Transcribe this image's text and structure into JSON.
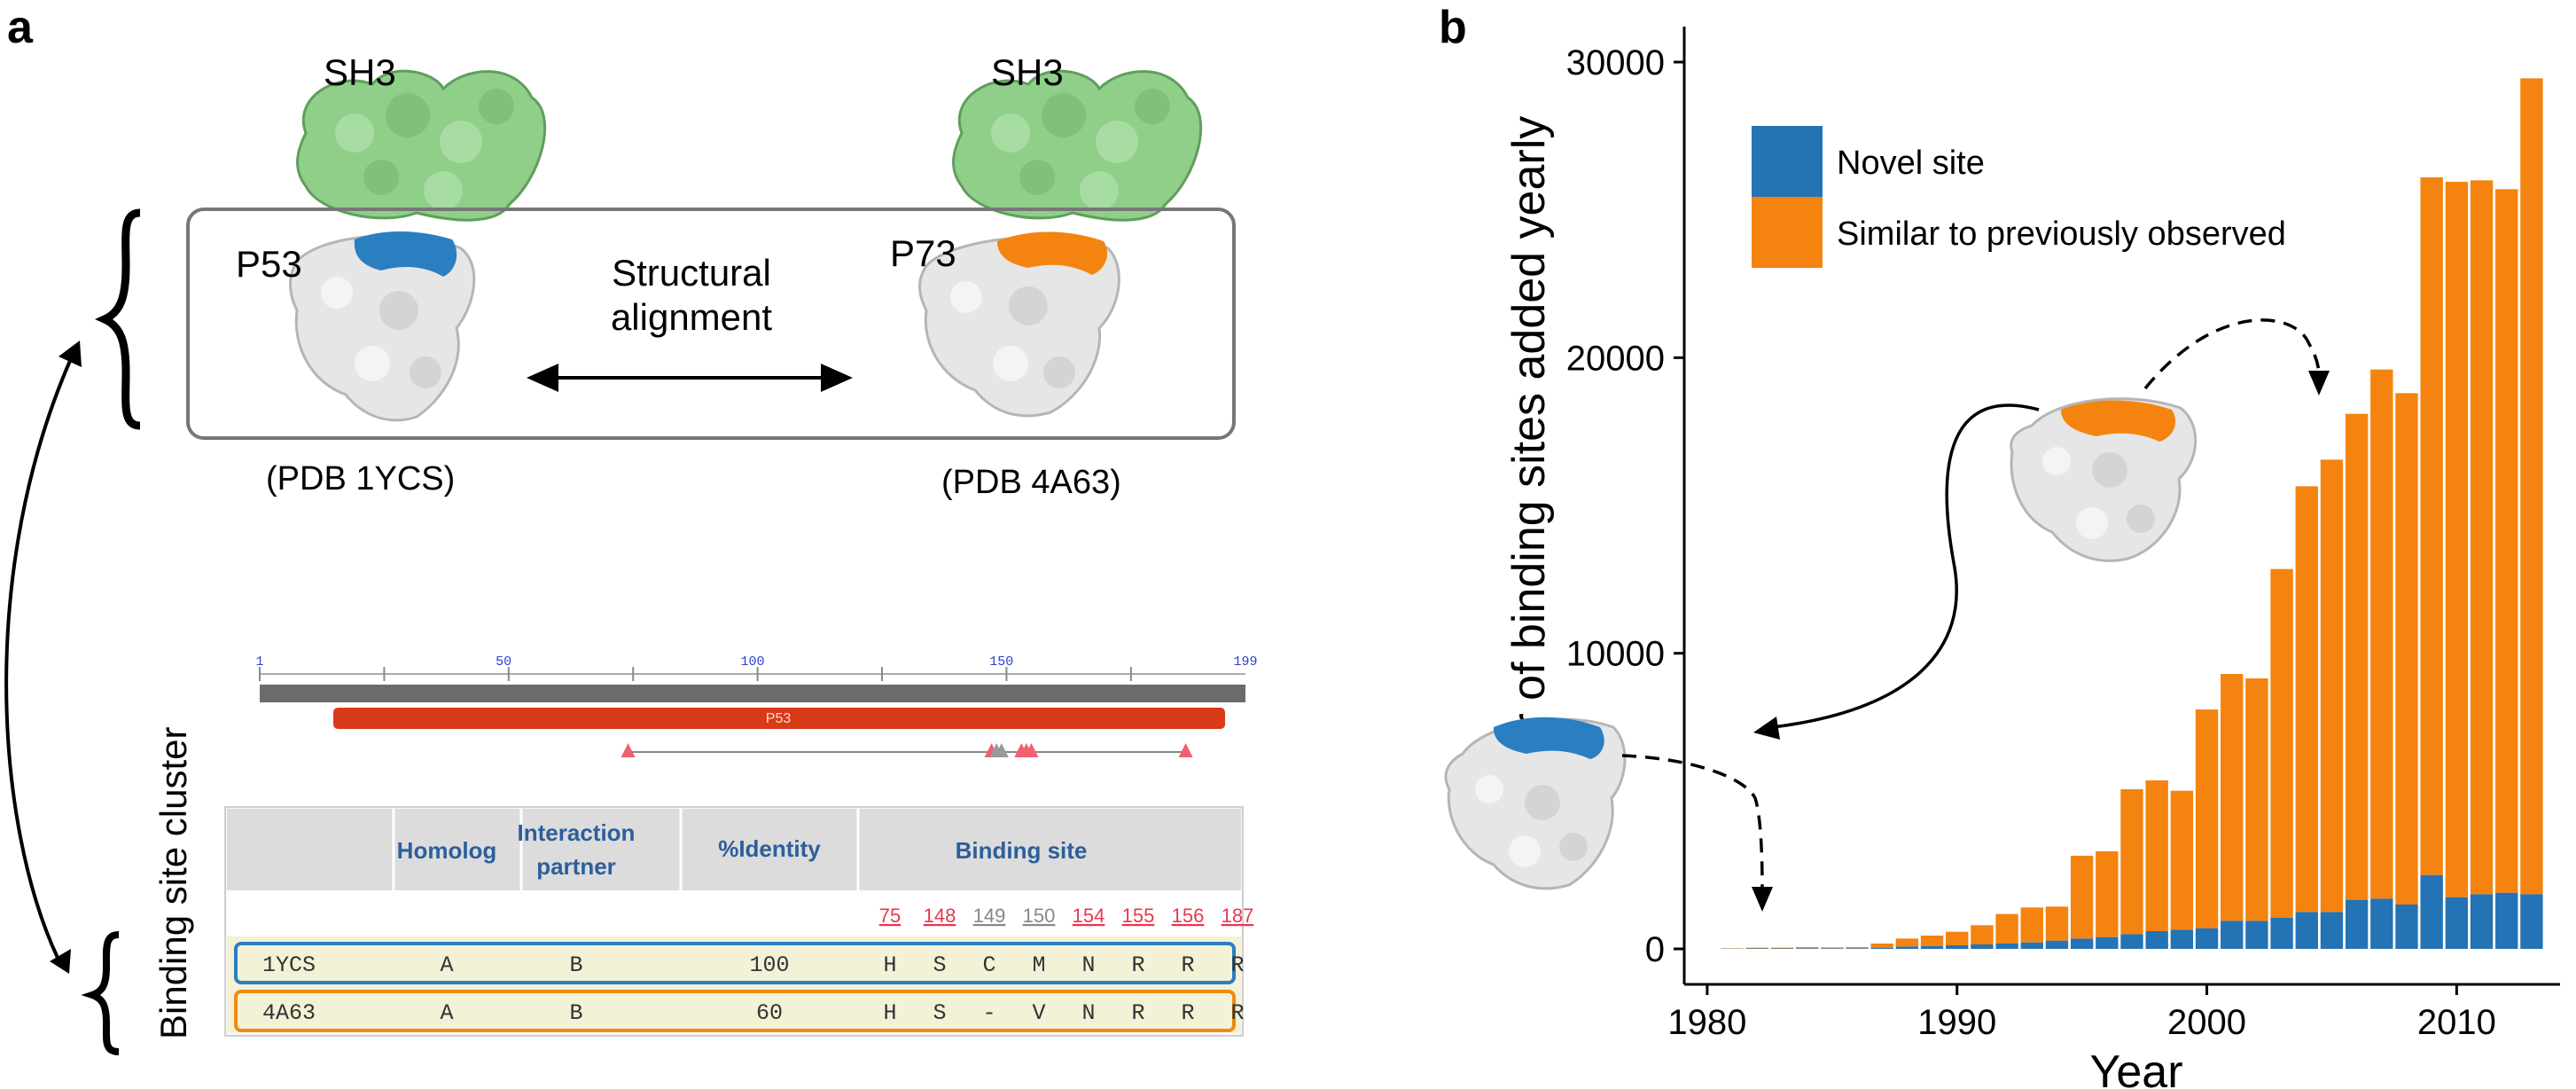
{
  "panel_a": {
    "letter": "a",
    "top_structure": {
      "left_partner": "SH3",
      "right_partner": "SH3",
      "left_protein": "P53",
      "right_protein": "P73",
      "center_label_line1": "Structural",
      "center_label_line2": "alignment",
      "left_pdb": "(PDB 1YCS)",
      "right_pdb": "(PDB 4A63)"
    },
    "cluster_label": "Binding site cluster",
    "sequence_bar": {
      "ticks": [
        "1",
        "50",
        "100",
        "150",
        "199"
      ],
      "domain_label": "P53"
    },
    "table": {
      "headers": {
        "homolog": "Homolog",
        "partner_line1": "Interaction",
        "partner_line2": "partner",
        "identity": "%Identity",
        "binding_site": "Binding site"
      },
      "positions": [
        {
          "num": "75",
          "color": "#e8384f"
        },
        {
          "num": "148",
          "color": "#e8384f"
        },
        {
          "num": "149",
          "color": "#888888"
        },
        {
          "num": "150",
          "color": "#888888"
        },
        {
          "num": "154",
          "color": "#e8384f"
        },
        {
          "num": "155",
          "color": "#e8384f"
        },
        {
          "num": "156",
          "color": "#e8384f"
        },
        {
          "num": "187",
          "color": "#e8384f"
        }
      ],
      "rows": [
        {
          "id": "1YCS",
          "homolog": "A",
          "partner": "B",
          "identity": "100",
          "residues": [
            "H",
            "S",
            "C",
            "M",
            "N",
            "R",
            "R",
            "R"
          ],
          "border": "#2a7fc0"
        },
        {
          "id": "4A63",
          "homolog": "A",
          "partner": "B",
          "identity": "60",
          "residues": [
            "H",
            "S",
            "-",
            "V",
            "N",
            "R",
            "R",
            "R"
          ],
          "border": "#f08a10"
        }
      ]
    }
  },
  "panel_b": {
    "letter": "b",
    "colors": {
      "novel": "#2373b5",
      "similar": "#f5830f"
    }
  },
  "chart_data": {
    "type": "bar",
    "stacked": true,
    "xlabel": "Year",
    "ylabel": "Number of binding sites added yearly",
    "x_ticks": [
      "1980",
      "1990",
      "2000",
      "2010"
    ],
    "y_ticks": [
      "0",
      "10000",
      "20000",
      "30000"
    ],
    "ylim": [
      0,
      30000
    ],
    "xlim": [
      1980,
      2014
    ],
    "legend_position": "top-left",
    "categories": [
      1981,
      1982,
      1983,
      1984,
      1985,
      1986,
      1987,
      1988,
      1989,
      1990,
      1991,
      1992,
      1993,
      1994,
      1995,
      1996,
      1997,
      1998,
      1999,
      2000,
      2001,
      2002,
      2003,
      2004,
      2005,
      2006,
      2007,
      2008,
      2009,
      2010,
      2011,
      2012,
      2013
    ],
    "series": [
      {
        "name": "Novel site",
        "color": "#2373b5",
        "values": [
          10,
          15,
          15,
          20,
          20,
          20,
          40,
          80,
          100,
          120,
          150,
          180,
          220,
          280,
          350,
          400,
          500,
          600,
          650,
          700,
          950,
          950,
          1050,
          1250,
          1250,
          1650,
          1700,
          1500,
          2500,
          1750,
          1850,
          1900,
          1850
        ]
      },
      {
        "name": "Similar to previously observed",
        "color": "#f5830f",
        "values": [
          10,
          25,
          25,
          40,
          30,
          40,
          140,
          270,
          350,
          460,
          650,
          1000,
          1180,
          1150,
          2800,
          2900,
          4900,
          5100,
          4700,
          7400,
          8350,
          8200,
          11800,
          14400,
          15300,
          16450,
          17900,
          17300,
          23600,
          24200,
          24150,
          23800,
          27600
        ]
      }
    ]
  }
}
